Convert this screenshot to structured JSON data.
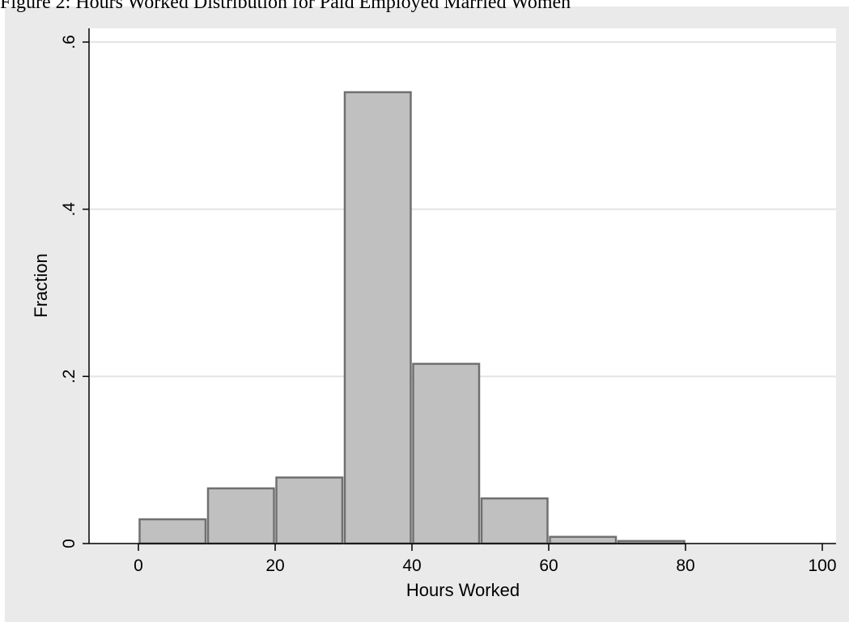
{
  "figure": {
    "title": "Figure 2: Hours Worked Distribution for Paid Employed Married Women"
  },
  "chart_data": {
    "type": "bar",
    "title": "Figure 2: Hours Worked Distribution for Paid Employed Married Women",
    "xlabel": "Hours Worked",
    "ylabel": "Fraction",
    "bins": [
      {
        "start": 0,
        "end": 10,
        "value": 0.029
      },
      {
        "start": 10,
        "end": 20,
        "value": 0.066
      },
      {
        "start": 20,
        "end": 30,
        "value": 0.079
      },
      {
        "start": 30,
        "end": 40,
        "value": 0.54
      },
      {
        "start": 40,
        "end": 50,
        "value": 0.215
      },
      {
        "start": 50,
        "end": 60,
        "value": 0.054
      },
      {
        "start": 60,
        "end": 70,
        "value": 0.008
      },
      {
        "start": 70,
        "end": 80,
        "value": 0.003
      }
    ],
    "xlim": [
      -7,
      102
    ],
    "ylim": [
      0,
      0.6
    ],
    "x_ticks": [
      {
        "value": 0,
        "label": "0"
      },
      {
        "value": 20,
        "label": "20"
      },
      {
        "value": 40,
        "label": "40"
      },
      {
        "value": 60,
        "label": "60"
      },
      {
        "value": 80,
        "label": "80"
      },
      {
        "value": 100,
        "label": "100"
      }
    ],
    "y_ticks": [
      {
        "value": 0,
        "label": "0"
      },
      {
        "value": 0.2,
        "label": ".2"
      },
      {
        "value": 0.4,
        "label": ".4"
      },
      {
        "value": 0.6,
        "label": ".6"
      }
    ],
    "grid": true,
    "colors": {
      "bar_fill": "#c0c0c0",
      "bar_stroke": "#707070",
      "plot_background": "#ffffff",
      "outer_background": "#eaeaea",
      "grid": "#e4e4e4",
      "axis": "#000000"
    }
  }
}
